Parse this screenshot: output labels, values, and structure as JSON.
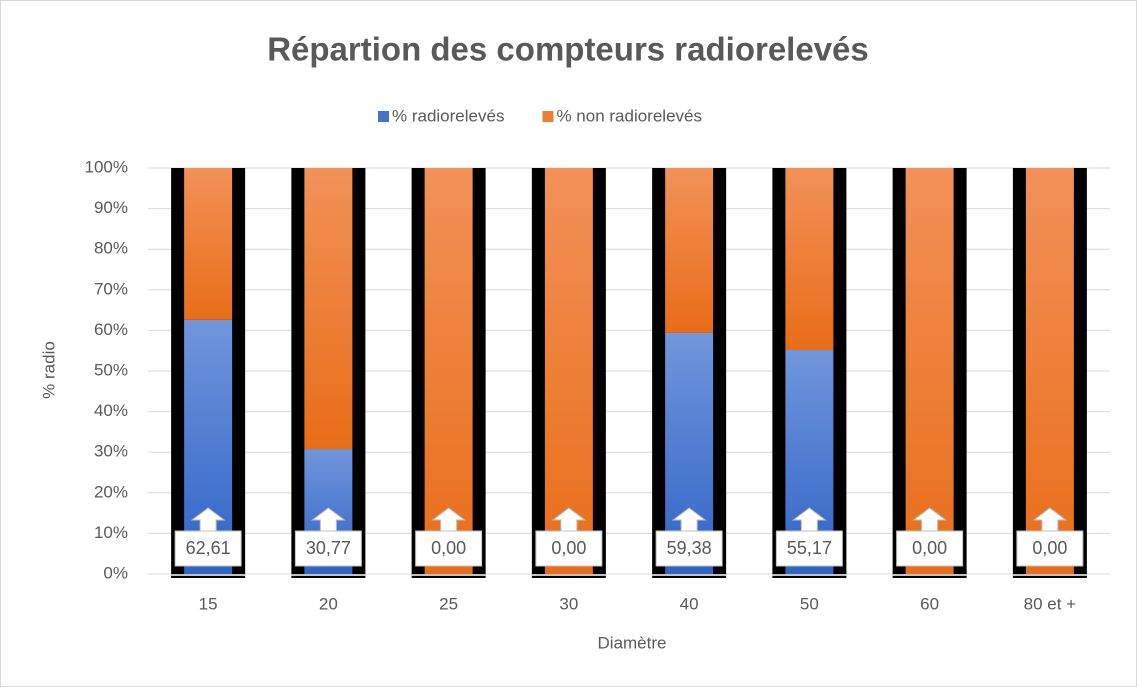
{
  "chart_data": {
    "type": "stacked_bar",
    "title": "Répartion des compteurs radiorelevés",
    "xlabel": "Diamètre",
    "ylabel": "% radio",
    "categories": [
      "15",
      "20",
      "25",
      "30",
      "40",
      "50",
      "60",
      "80 et +"
    ],
    "series": [
      {
        "name": "% radiorelevés",
        "color": "#4472c4",
        "values": [
          62.61,
          30.77,
          0,
          0,
          59.38,
          55.17,
          0,
          0
        ],
        "value_labels": [
          "62,61",
          "30,77",
          "0,00",
          "0,00",
          "59,38",
          "55,17",
          "0,00",
          "0,00"
        ]
      },
      {
        "name": "% non radiorelevés",
        "color": "#ed7d31",
        "values": [
          37.39,
          69.23,
          100,
          100,
          40.62,
          44.83,
          100,
          100
        ]
      }
    ],
    "ylim": [
      0,
      100
    ],
    "yticks": [
      {
        "value": 0,
        "label": "0%"
      },
      {
        "value": 10,
        "label": "10%"
      },
      {
        "value": 20,
        "label": "20%"
      },
      {
        "value": 30,
        "label": "30%"
      },
      {
        "value": 40,
        "label": "40%"
      },
      {
        "value": 50,
        "label": "50%"
      },
      {
        "value": 60,
        "label": "60%"
      },
      {
        "value": 70,
        "label": "70%"
      },
      {
        "value": 80,
        "label": "80%"
      },
      {
        "value": 90,
        "label": "90%"
      },
      {
        "value": 100,
        "label": "100%"
      }
    ],
    "grid": true,
    "legend": "top"
  }
}
